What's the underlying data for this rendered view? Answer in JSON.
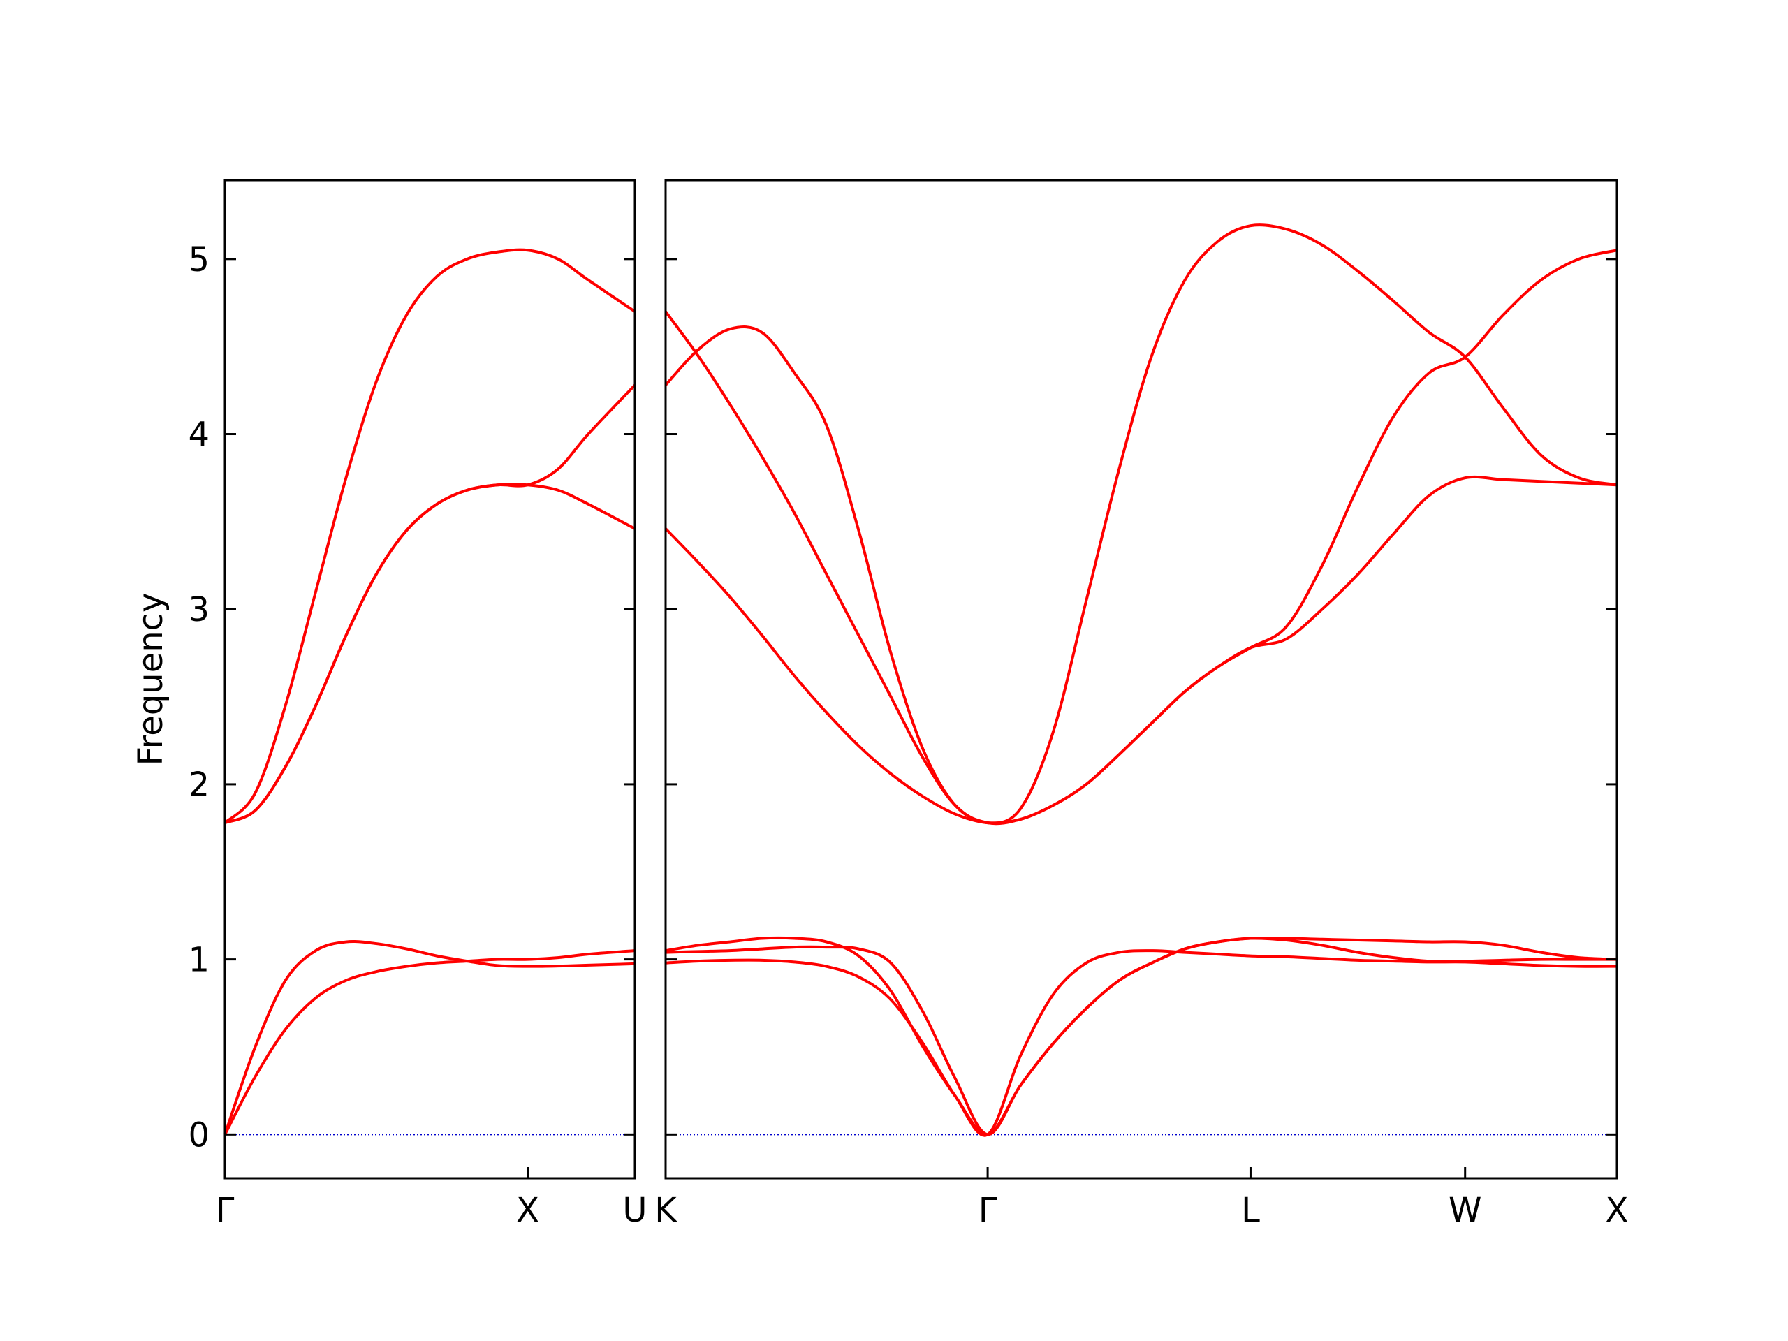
{
  "chart_data": [
    {
      "type": "line",
      "ylabel": "Frequency",
      "color": "#ff0000",
      "hlines": [
        0
      ],
      "hline_color": "#0000cd",
      "x": [
        0,
        0.1,
        0.2,
        0.3,
        0.4,
        0.5,
        0.6,
        0.7,
        0.8,
        0.9,
        1.0,
        1.1,
        1.2,
        1.354
      ],
      "xlim": [
        0,
        1.354
      ],
      "xticks": [
        {
          "value": 0,
          "label": "Γ"
        },
        {
          "value": 1,
          "label": "X"
        },
        {
          "value": 1.354,
          "label": "U"
        }
      ],
      "ylim": [
        -0.25,
        5.45
      ],
      "yticks": [
        0,
        1,
        2,
        3,
        4,
        5
      ],
      "series": [
        {
          "values": [
            0,
            0.5,
            0.88,
            1.05,
            1.1,
            1.09,
            1.06,
            1.02,
            0.99,
            0.965,
            0.96,
            0.962,
            0.967,
            0.975
          ]
        },
        {
          "values": [
            0,
            0.33,
            0.6,
            0.78,
            0.88,
            0.93,
            0.96,
            0.98,
            0.99,
            1.0,
            1.0,
            1.01,
            1.03,
            1.05
          ]
        },
        {
          "values": [
            1.78,
            1.95,
            2.45,
            3.1,
            3.75,
            4.3,
            4.68,
            4.9,
            5.0,
            5.04,
            5.05,
            5.0,
            4.88,
            4.7
          ]
        },
        {
          "values": [
            1.78,
            1.85,
            2.1,
            2.45,
            2.85,
            3.2,
            3.45,
            3.6,
            3.68,
            3.71,
            3.71,
            3.8,
            4.0,
            4.28
          ]
        },
        {
          "values": [
            1.78,
            1.85,
            2.1,
            2.45,
            2.85,
            3.2,
            3.45,
            3.6,
            3.68,
            3.71,
            3.71,
            3.68,
            3.6,
            3.46
          ]
        }
      ]
    },
    {
      "type": "line",
      "color": "#ff0000",
      "hlines": [
        0
      ],
      "hline_color": "#0000cd",
      "x": [
        1.354,
        1.46,
        1.566,
        1.672,
        1.778,
        1.884,
        1.99,
        2.096,
        2.202,
        2.308,
        2.415,
        2.523,
        2.631,
        2.74,
        2.848,
        2.956,
        3.065,
        3.173,
        3.281,
        3.399,
        3.517,
        3.635,
        3.752,
        3.87,
        3.988,
        4.113,
        4.238,
        4.363,
        4.488
      ],
      "xlim": [
        1.354,
        4.488
      ],
      "xticks": [
        {
          "value": 1.354,
          "label": "K"
        },
        {
          "value": 2.415,
          "label": "Γ"
        },
        {
          "value": 3.281,
          "label": "L"
        },
        {
          "value": 3.988,
          "label": "W"
        },
        {
          "value": 4.488,
          "label": "X"
        }
      ],
      "ylim": [
        -0.25,
        5.45
      ],
      "yticks": [
        0,
        1,
        2,
        3,
        4,
        5
      ],
      "series": [
        {
          "values": [
            4.7,
            4.45,
            4.17,
            3.87,
            3.55,
            3.2,
            2.85,
            2.5,
            2.15,
            1.88,
            1.78,
            1.86,
            2.3,
            3.05,
            3.8,
            4.45,
            4.88,
            5.1,
            5.19,
            5.17,
            5.08,
            4.93,
            4.76,
            4.58,
            4.44,
            4.15,
            3.88,
            3.75,
            3.71
          ]
        },
        {
          "values": [
            4.28,
            4.48,
            4.6,
            4.58,
            4.35,
            4.05,
            3.45,
            2.75,
            2.2,
            1.88,
            1.78,
            1.8,
            1.88,
            2.0,
            2.17,
            2.35,
            2.53,
            2.67,
            2.78,
            2.9,
            3.25,
            3.7,
            4.1,
            4.35,
            4.44,
            4.68,
            4.88,
            5.0,
            5.05
          ]
        },
        {
          "values": [
            3.46,
            3.27,
            3.07,
            2.85,
            2.62,
            2.41,
            2.22,
            2.06,
            1.93,
            1.83,
            1.78,
            1.8,
            1.88,
            2.0,
            2.17,
            2.35,
            2.53,
            2.67,
            2.78,
            2.83,
            3.0,
            3.2,
            3.43,
            3.65,
            3.75,
            3.74,
            3.73,
            3.72,
            3.71
          ]
        },
        {
          "values": [
            1.05,
            1.08,
            1.1,
            1.12,
            1.12,
            1.1,
            1.02,
            0.82,
            0.5,
            0.22,
            0,
            0.28,
            0.52,
            0.72,
            0.88,
            0.98,
            1.06,
            1.1,
            1.12,
            1.12,
            1.115,
            1.11,
            1.105,
            1.1,
            1.1,
            1.08,
            1.04,
            1.01,
            1.0
          ]
        },
        {
          "values": [
            1.04,
            1.045,
            1.05,
            1.06,
            1.07,
            1.07,
            1.06,
            0.98,
            0.7,
            0.32,
            0,
            0.28,
            0.52,
            0.72,
            0.88,
            0.98,
            1.06,
            1.1,
            1.12,
            1.11,
            1.08,
            1.04,
            1.01,
            0.99,
            0.99,
            0.995,
            1.0,
            1.0,
            1.0
          ]
        },
        {
          "values": [
            0.98,
            0.99,
            0.995,
            0.995,
            0.985,
            0.96,
            0.9,
            0.77,
            0.52,
            0.22,
            0,
            0.45,
            0.8,
            0.98,
            1.04,
            1.05,
            1.04,
            1.03,
            1.02,
            1.015,
            1.005,
            0.995,
            0.99,
            0.985,
            0.985,
            0.975,
            0.965,
            0.96,
            0.96
          ]
        }
      ]
    }
  ]
}
